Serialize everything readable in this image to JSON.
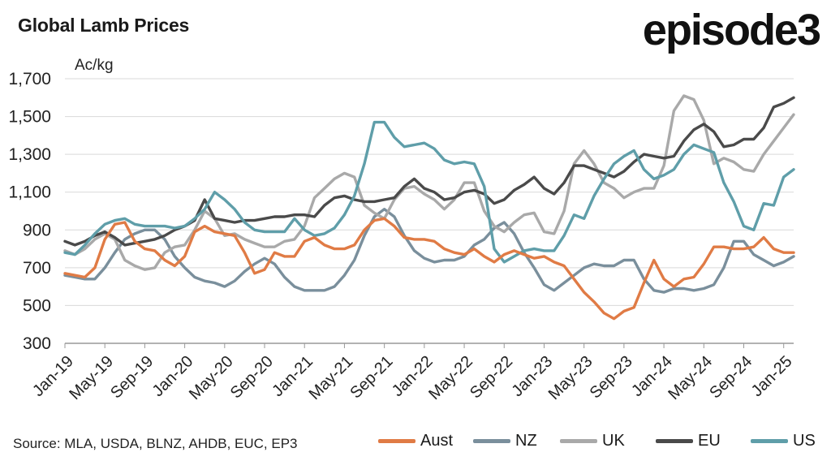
{
  "title": "Global Lamb Prices",
  "logo": "episode3",
  "source": "Source: MLA, USDA, BLNZ, AHDB, EUC, EP3",
  "chart_data": {
    "type": "line",
    "ylabel": "Ac/kg",
    "ylim": [
      300,
      1700
    ],
    "yticks": [
      "1,700",
      "1,500",
      "1,300",
      "1,100",
      "900",
      "700",
      "500",
      "300"
    ],
    "xticks": [
      "Jan-19",
      "May-19",
      "Sep-19",
      "Jan-20",
      "May-20",
      "Sep-20",
      "Jan-21",
      "May-21",
      "Sep-21",
      "Jan-22",
      "May-22",
      "Sep-22",
      "Jan-23",
      "May-23",
      "Sep-23",
      "Jan-24",
      "May-24",
      "Sep-24",
      "Jan-25"
    ],
    "grid": true,
    "legend_position": "bottom",
    "x_start": "Jan-19",
    "series": [
      {
        "name": "Aust",
        "color": "#e07b45",
        "values": [
          670,
          660,
          650,
          700,
          850,
          930,
          940,
          840,
          800,
          790,
          740,
          710,
          760,
          890,
          920,
          890,
          880,
          870,
          780,
          670,
          690,
          780,
          760,
          760,
          840,
          860,
          820,
          800,
          800,
          820,
          900,
          950,
          960,
          920,
          860,
          850,
          850,
          840,
          800,
          780,
          770,
          800,
          760,
          730,
          770,
          790,
          770,
          750,
          760,
          730,
          710,
          640,
          570,
          520,
          460,
          430,
          470,
          490,
          620,
          740,
          640,
          600,
          640,
          650,
          720,
          810,
          810,
          800,
          800,
          810,
          860,
          800,
          780,
          780
        ]
      },
      {
        "name": "NZ",
        "color": "#7a8f9c",
        "values": [
          660,
          650,
          640,
          640,
          700,
          780,
          850,
          880,
          900,
          900,
          850,
          760,
          700,
          650,
          630,
          620,
          600,
          630,
          680,
          720,
          750,
          720,
          650,
          600,
          580,
          580,
          580,
          600,
          660,
          740,
          870,
          970,
          1010,
          970,
          870,
          790,
          750,
          730,
          740,
          740,
          760,
          820,
          850,
          910,
          940,
          880,
          780,
          700,
          610,
          580,
          620,
          660,
          700,
          720,
          710,
          710,
          740,
          740,
          640,
          580,
          570,
          590,
          590,
          580,
          590,
          610,
          700,
          840,
          840,
          770,
          740,
          710,
          730,
          760
        ]
      },
      {
        "name": "UK",
        "color": "#a9a9a9",
        "values": [
          790,
          770,
          800,
          850,
          880,
          850,
          740,
          710,
          690,
          700,
          780,
          810,
          820,
          900,
          1000,
          960,
          870,
          880,
          850,
          830,
          810,
          810,
          840,
          850,
          920,
          1070,
          1120,
          1170,
          1200,
          1180,
          1030,
          990,
          960,
          1060,
          1120,
          1130,
          1090,
          1060,
          1010,
          1060,
          1150,
          1150,
          1000,
          920,
          890,
          940,
          980,
          990,
          890,
          880,
          1000,
          1250,
          1320,
          1250,
          1150,
          1120,
          1070,
          1100,
          1120,
          1120,
          1240,
          1530,
          1610,
          1590,
          1480,
          1250,
          1280,
          1260,
          1220,
          1210,
          1300,
          1370,
          1440,
          1510
        ]
      },
      {
        "name": "EU",
        "color": "#4a4a4a",
        "values": [
          840,
          820,
          840,
          870,
          890,
          860,
          820,
          830,
          840,
          850,
          870,
          900,
          920,
          950,
          1060,
          960,
          950,
          940,
          950,
          950,
          960,
          970,
          970,
          980,
          980,
          970,
          1030,
          1070,
          1080,
          1060,
          1050,
          1050,
          1060,
          1070,
          1130,
          1170,
          1120,
          1100,
          1060,
          1070,
          1100,
          1110,
          1090,
          1040,
          1060,
          1110,
          1140,
          1180,
          1120,
          1090,
          1150,
          1240,
          1240,
          1220,
          1200,
          1180,
          1210,
          1260,
          1300,
          1290,
          1280,
          1290,
          1370,
          1430,
          1460,
          1420,
          1340,
          1350,
          1380,
          1380,
          1440,
          1550,
          1570,
          1600
        ]
      },
      {
        "name": "US",
        "color": "#5f9ea9",
        "values": [
          780,
          770,
          820,
          880,
          930,
          950,
          960,
          930,
          920,
          920,
          920,
          910,
          920,
          960,
          1010,
          1100,
          1060,
          1010,
          940,
          900,
          890,
          890,
          890,
          960,
          900,
          870,
          880,
          910,
          980,
          1080,
          1250,
          1470,
          1470,
          1390,
          1340,
          1350,
          1360,
          1330,
          1270,
          1250,
          1260,
          1250,
          1130,
          800,
          730,
          760,
          790,
          800,
          790,
          790,
          870,
          980,
          960,
          1080,
          1170,
          1250,
          1290,
          1320,
          1220,
          1170,
          1190,
          1220,
          1300,
          1350,
          1330,
          1310,
          1150,
          1050,
          920,
          900,
          1040,
          1030,
          1180,
          1220
        ]
      }
    ]
  }
}
